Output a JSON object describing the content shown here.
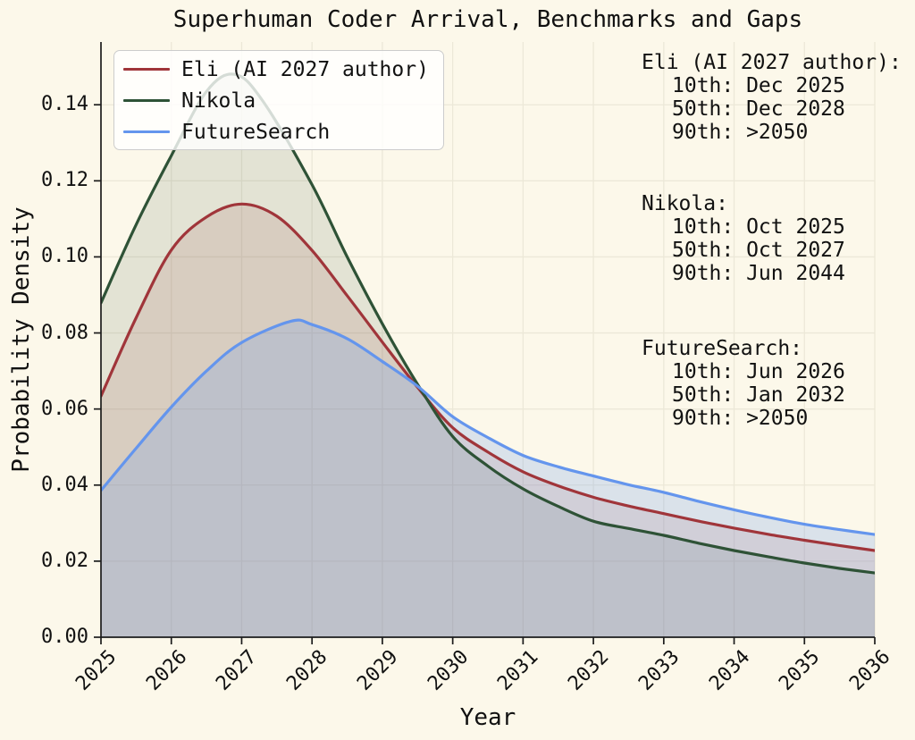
{
  "figure": {
    "background": "#FCF8EA",
    "grid_color": "#ECE8D8",
    "axis_color": "#1c1c1c",
    "text_color": "#111111"
  },
  "chart_data": {
    "type": "area",
    "title": "Superhuman Coder Arrival, Benchmarks and Gaps",
    "xlabel": "Year",
    "ylabel": "Probability Density",
    "xlim": [
      2025,
      2036
    ],
    "ylim": [
      0,
      0.1565
    ],
    "grid": true,
    "legend_position": "upper left",
    "x_tick_labels": [
      "2025",
      "2026",
      "2027",
      "2028",
      "2029",
      "2030",
      "2031",
      "2032",
      "2033",
      "2034",
      "2035",
      "2036"
    ],
    "y_tick_labels": [
      "0.00",
      "0.02",
      "0.04",
      "0.06",
      "0.08",
      "0.10",
      "0.12",
      "0.14"
    ],
    "series": [
      {
        "name": "Eli (AI 2027 author)",
        "color": "#A0353A",
        "fill_opacity": 0.13,
        "points": [
          [
            2025,
            0.0634
          ],
          [
            2025.5,
            0.084
          ],
          [
            2026,
            0.1018
          ],
          [
            2026.5,
            0.1105
          ],
          [
            2027,
            0.1139
          ],
          [
            2027.5,
            0.1107
          ],
          [
            2028,
            0.1017
          ],
          [
            2028.5,
            0.0898
          ],
          [
            2029,
            0.0776
          ],
          [
            2029.5,
            0.0657
          ],
          [
            2030,
            0.0551
          ],
          [
            2030.5,
            0.0487
          ],
          [
            2031,
            0.0435
          ],
          [
            2031.5,
            0.0398
          ],
          [
            2032,
            0.0368
          ],
          [
            2032.5,
            0.0345
          ],
          [
            2033,
            0.0325
          ],
          [
            2033.5,
            0.0305
          ],
          [
            2034,
            0.0287
          ],
          [
            2034.5,
            0.027
          ],
          [
            2035,
            0.0255
          ],
          [
            2035.5,
            0.0241
          ],
          [
            2036,
            0.0228
          ]
        ]
      },
      {
        "name": "Nikola",
        "color": "#2E5236",
        "fill_opacity": 0.12,
        "points": [
          [
            2025,
            0.0879
          ],
          [
            2025.5,
            0.1085
          ],
          [
            2026,
            0.1266
          ],
          [
            2026.5,
            0.1435
          ],
          [
            2026.9,
            0.148
          ],
          [
            2027.3,
            0.141
          ],
          [
            2028,
            0.119
          ],
          [
            2028.5,
            0.1
          ],
          [
            2029,
            0.0824
          ],
          [
            2029.5,
            0.0665
          ],
          [
            2030,
            0.0528
          ],
          [
            2030.5,
            0.045
          ],
          [
            2031,
            0.039
          ],
          [
            2031.5,
            0.0344
          ],
          [
            2032,
            0.0305
          ],
          [
            2032.5,
            0.0286
          ],
          [
            2033,
            0.0268
          ],
          [
            2033.5,
            0.0247
          ],
          [
            2034,
            0.0228
          ],
          [
            2034.5,
            0.0211
          ],
          [
            2035,
            0.0195
          ],
          [
            2035.5,
            0.0181
          ],
          [
            2036,
            0.0169
          ]
        ]
      },
      {
        "name": "FutureSearch",
        "color": "#6495ED",
        "fill_opacity": 0.22,
        "points": [
          [
            2025,
            0.0386
          ],
          [
            2025.5,
            0.0497
          ],
          [
            2026,
            0.0605
          ],
          [
            2026.5,
            0.07
          ],
          [
            2027,
            0.0775
          ],
          [
            2027.7,
            0.0831
          ],
          [
            2028,
            0.0822
          ],
          [
            2028.5,
            0.0785
          ],
          [
            2029,
            0.0725
          ],
          [
            2029.5,
            0.066
          ],
          [
            2030,
            0.058
          ],
          [
            2030.5,
            0.0525
          ],
          [
            2031,
            0.0478
          ],
          [
            2031.5,
            0.0448
          ],
          [
            2032,
            0.0424
          ],
          [
            2032.5,
            0.0401
          ],
          [
            2033,
            0.0381
          ],
          [
            2033.5,
            0.0357
          ],
          [
            2034,
            0.0335
          ],
          [
            2034.5,
            0.0315
          ],
          [
            2035,
            0.0297
          ],
          [
            2035.5,
            0.0283
          ],
          [
            2036,
            0.027
          ]
        ]
      }
    ]
  },
  "annotations": [
    {
      "heading": "Eli (AI 2027 author):",
      "lines": [
        "10th: Dec 2025",
        "50th: Dec 2028",
        "90th: >2050"
      ]
    },
    {
      "heading": "Nikola:",
      "lines": [
        "10th: Oct 2025",
        "50th: Oct 2027",
        "90th: Jun 2044"
      ]
    },
    {
      "heading": "FutureSearch:",
      "lines": [
        "10th: Jun 2026",
        "50th: Jan 2032",
        "90th: >2050"
      ]
    }
  ]
}
